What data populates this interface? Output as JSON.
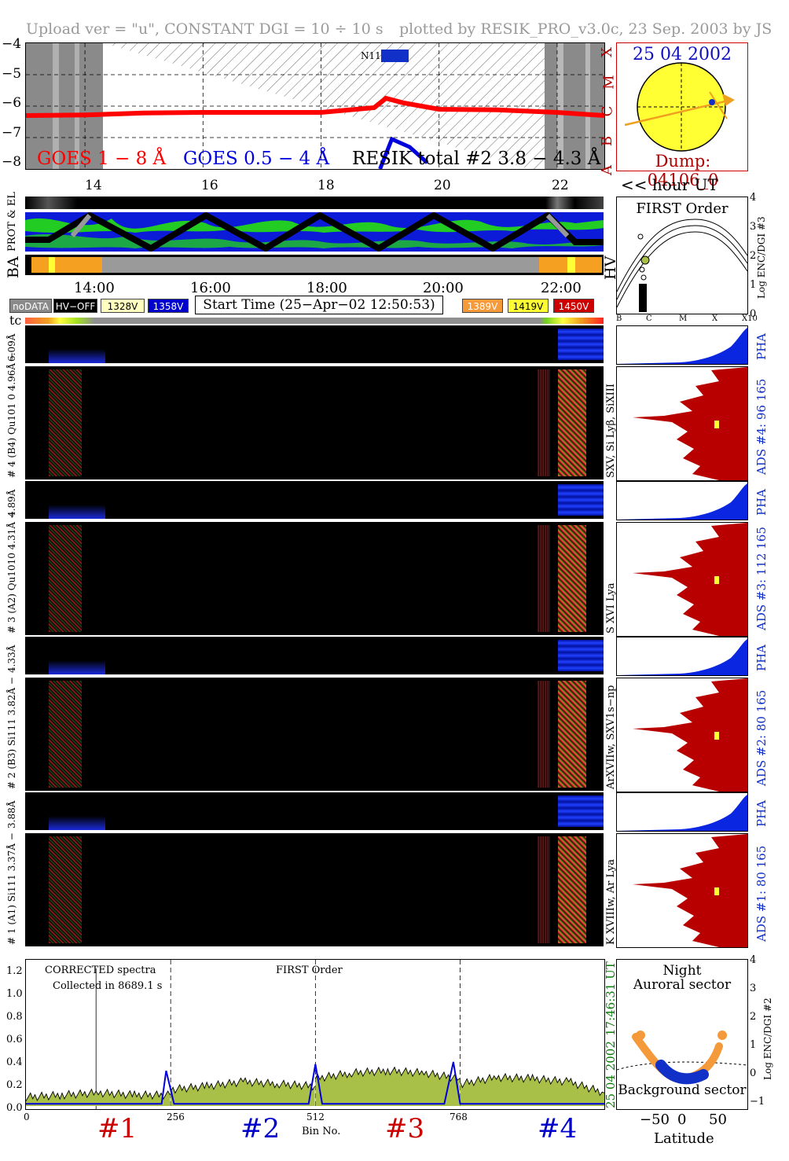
{
  "header": {
    "left": "Upload ver = \"u\", CONSTANT  DGI =  10 ÷  10 s",
    "right": "plotted by RESIK_PRO_v3.0c, 23 Sep. 2003 by JS"
  },
  "goes": {
    "y_ticks": [
      "−4",
      "−5",
      "−6",
      "−7",
      "−8"
    ],
    "class_letters": [
      "X",
      "M",
      "C",
      "B",
      "A"
    ],
    "label_long": "GOES 1 − 8 Å",
    "label_short": "GOES 0.5 − 4 Å",
    "label_resik": "RESIK total #2  3.8 − 4.3 Å",
    "noaa_tag": "N11",
    "colors": {
      "long": "#ff0000",
      "short": "#0000dd",
      "hatch": "#6a6a6a"
    }
  },
  "sun_panel": {
    "date": "25 04 2002",
    "dump": "Dump: 04106_0",
    "colors": {
      "disk": "#ffff33",
      "arrow": "#f0a020",
      "border": "#cc0000"
    }
  },
  "hour_axis_top": {
    "ticks": [
      "14",
      "16",
      "18",
      "20",
      "22"
    ],
    "unit_label": "<< hour UT"
  },
  "track": {
    "label_side": "PROT & EL",
    "label_ba": "BA",
    "label_hv": "HV"
  },
  "hour_axis_mid": {
    "ticks": [
      "14:00",
      "16:00",
      "18:00",
      "20:00",
      "22:00"
    ]
  },
  "status_row": {
    "no_data": "noDATA",
    "hv_off": "HV−OFF",
    "v1328": "1328V",
    "v1358": "1358V",
    "start_time": "Start Time (25−Apr−02 12:50:53)",
    "v1389": "1389V",
    "v1419": "1419V",
    "v1450": "1450V",
    "colors": {
      "v1328": "#ffffc0",
      "v1358": "#0000cc",
      "v1389": "#f59a3a",
      "v1419": "#ffff33",
      "v1450": "#cc0000"
    }
  },
  "tc_label": "tc",
  "first_order_panel": {
    "title": "FIRST Order",
    "y_ticks": [
      "4",
      "3",
      "2",
      "1",
      "0"
    ],
    "y_label": "Log ENC/DGI #3",
    "x_ticks": [
      "B",
      "C",
      "M",
      "X",
      "X10"
    ]
  },
  "channels": [
    {
      "pha_label": "6.09Å",
      "main_label": "# 4 (B4) Qu101 0 4.96Å −",
      "ads": "ADS #4:   96 165",
      "pha": "PHA",
      "lines": "SXV, Si Lyβ, SiXIII"
    },
    {
      "pha_label": "4.89Å",
      "main_label": "# 3 (A2) Qu1010  4.31Å −",
      "ads": "ADS #3:   112 165",
      "pha": "PHA",
      "lines": "S XVI Lya"
    },
    {
      "pha_label": "4.33Å",
      "main_label": "# 2 (B3) Si111  3.82Å −",
      "ads": "ADS #2:   80 165",
      "pha": "PHA",
      "lines": "ArXVIIw, SXV1s−np"
    },
    {
      "pha_label": "3.88Å",
      "main_label": "# 1 (A1) Si111  3.37Å −",
      "ads": "ADS #1:   80 165",
      "pha": "PHA",
      "lines": "K XVIIIw, Ar Lya"
    }
  ],
  "spectra": {
    "title": "CORRECTED spectra",
    "collected": "Collected in  8689.1 s",
    "order": "FIRST Order",
    "y_ticks": [
      "1.2",
      "1.0",
      "0.8",
      "0.6",
      "0.4",
      "0.2",
      "0.0"
    ],
    "x_ticks": [
      "0",
      "256",
      "512",
      "768"
    ],
    "x_label": "Bin No.",
    "date": "25 04 2002",
    "time": "17:46:31 UT",
    "channel_labels": [
      "#1",
      "#2",
      "#3",
      "#4"
    ],
    "colors": {
      "spec": "#000000",
      "fill": "#a8c048",
      "blue": "#0000dd",
      "ch_red": "#cc0000",
      "ch_blue": "#0000cc"
    }
  },
  "chart_data": [
    {
      "type": "line",
      "title": "",
      "xlabel": "",
      "ylabel": "",
      "ylim": [
        -8,
        -4
      ],
      "x_range_hours": [
        13.0,
        22.8
      ],
      "series": [
        {
          "name": "GOES 1 − 8 Å",
          "x": [
            13.0,
            14.0,
            15.0,
            16.0,
            17.0,
            18.0,
            18.9,
            19.1,
            19.4,
            20.0,
            21.0,
            22.0,
            22.8
          ],
          "values": [
            -6.3,
            -6.28,
            -6.22,
            -6.2,
            -6.2,
            -6.2,
            -6.05,
            -5.75,
            -5.9,
            -6.1,
            -6.12,
            -6.2,
            -6.3
          ]
        },
        {
          "name": "GOES 0.5 − 4 Å",
          "x": [
            19.0,
            19.2,
            19.5,
            19.8
          ],
          "values": [
            -8.0,
            -7.05,
            -7.3,
            -7.8
          ]
        }
      ]
    },
    {
      "type": "line",
      "title": "",
      "xlabel": "Bin No.",
      "ylabel": "",
      "ylim": [
        0.0,
        1.3
      ],
      "xlim": [
        0,
        1023
      ],
      "series": [
        {
          "name": "#1",
          "x": [
            0,
            64,
            128,
            192,
            255
          ],
          "values": [
            0.08,
            0.1,
            0.12,
            0.1,
            0.1
          ]
        },
        {
          "name": "#2",
          "x": [
            256,
            320,
            384,
            448,
            511
          ],
          "values": [
            0.15,
            0.18,
            0.22,
            0.2,
            0.18
          ]
        },
        {
          "name": "#3",
          "x": [
            512,
            576,
            640,
            704,
            767
          ],
          "values": [
            0.25,
            0.3,
            0.32,
            0.3,
            0.25
          ]
        },
        {
          "name": "#4",
          "x": [
            768,
            832,
            896,
            960,
            1023
          ],
          "values": [
            0.2,
            0.26,
            0.25,
            0.22,
            0.12
          ]
        }
      ]
    }
  ]
}
